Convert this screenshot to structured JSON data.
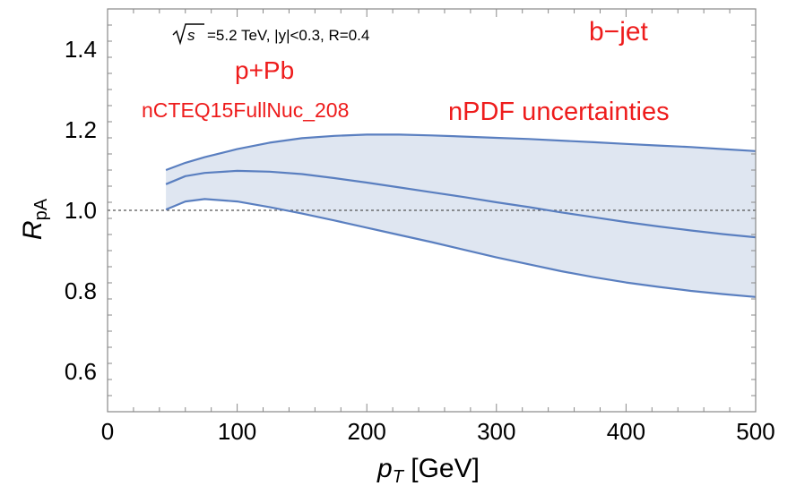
{
  "chart_data": {
    "type": "area",
    "xlabel_main": "p",
    "xlabel_sub": "T",
    "xlabel_unit": " [GeV]",
    "ylabel_main": "R",
    "ylabel_sub": "pA",
    "xlim": [
      0,
      500
    ],
    "ylim": [
      0.5,
      1.5
    ],
    "xticks": [
      0,
      100,
      200,
      300,
      400,
      500
    ],
    "xtick_labels": [
      "0",
      "100",
      "200",
      "300",
      "400",
      "500"
    ],
    "yticks": [
      0.6,
      0.8,
      1.0,
      1.2,
      1.4
    ],
    "ytick_labels": [
      "0.6",
      "0.8",
      "1.0",
      "1.2",
      "1.4"
    ],
    "reference_line": 1.0,
    "x": [
      45,
      60,
      75,
      100,
      125,
      150,
      175,
      200,
      225,
      250,
      275,
      300,
      325,
      350,
      375,
      400,
      425,
      450,
      475,
      500
    ],
    "series": [
      {
        "values": [
          1.1,
          1.118,
          1.132,
          1.152,
          1.168,
          1.179,
          1.185,
          1.188,
          1.188,
          1.186,
          1.183,
          1.18,
          1.177,
          1.173,
          1.169,
          1.165,
          1.161,
          1.157,
          1.152,
          1.147
        ]
      },
      {
        "values": [
          1.065,
          1.085,
          1.093,
          1.098,
          1.096,
          1.09,
          1.08,
          1.069,
          1.057,
          1.045,
          1.033,
          1.02,
          1.008,
          0.995,
          0.983,
          0.971,
          0.96,
          0.95,
          0.941,
          0.933
        ]
      },
      {
        "values": [
          1.002,
          1.022,
          1.028,
          1.022,
          1.008,
          0.992,
          0.975,
          0.957,
          0.939,
          0.921,
          0.902,
          0.883,
          0.866,
          0.849,
          0.834,
          0.821,
          0.81,
          0.8,
          0.792,
          0.785
        ]
      }
    ],
    "colors": {
      "line": "#5a7fc0",
      "band": "#dfe6f1",
      "annotation": "#ee1c1c",
      "reference": "#555555"
    },
    "annotations": {
      "energy_sqrt": "s",
      "energy_rest": "=5.2 TeV,  |y|<0.3, R=0.4",
      "jet": "b−jet",
      "system": "p+Pb",
      "pdf_set": "nCTEQ15FullNuc_208",
      "band_label": "nPDF uncertainties"
    }
  }
}
